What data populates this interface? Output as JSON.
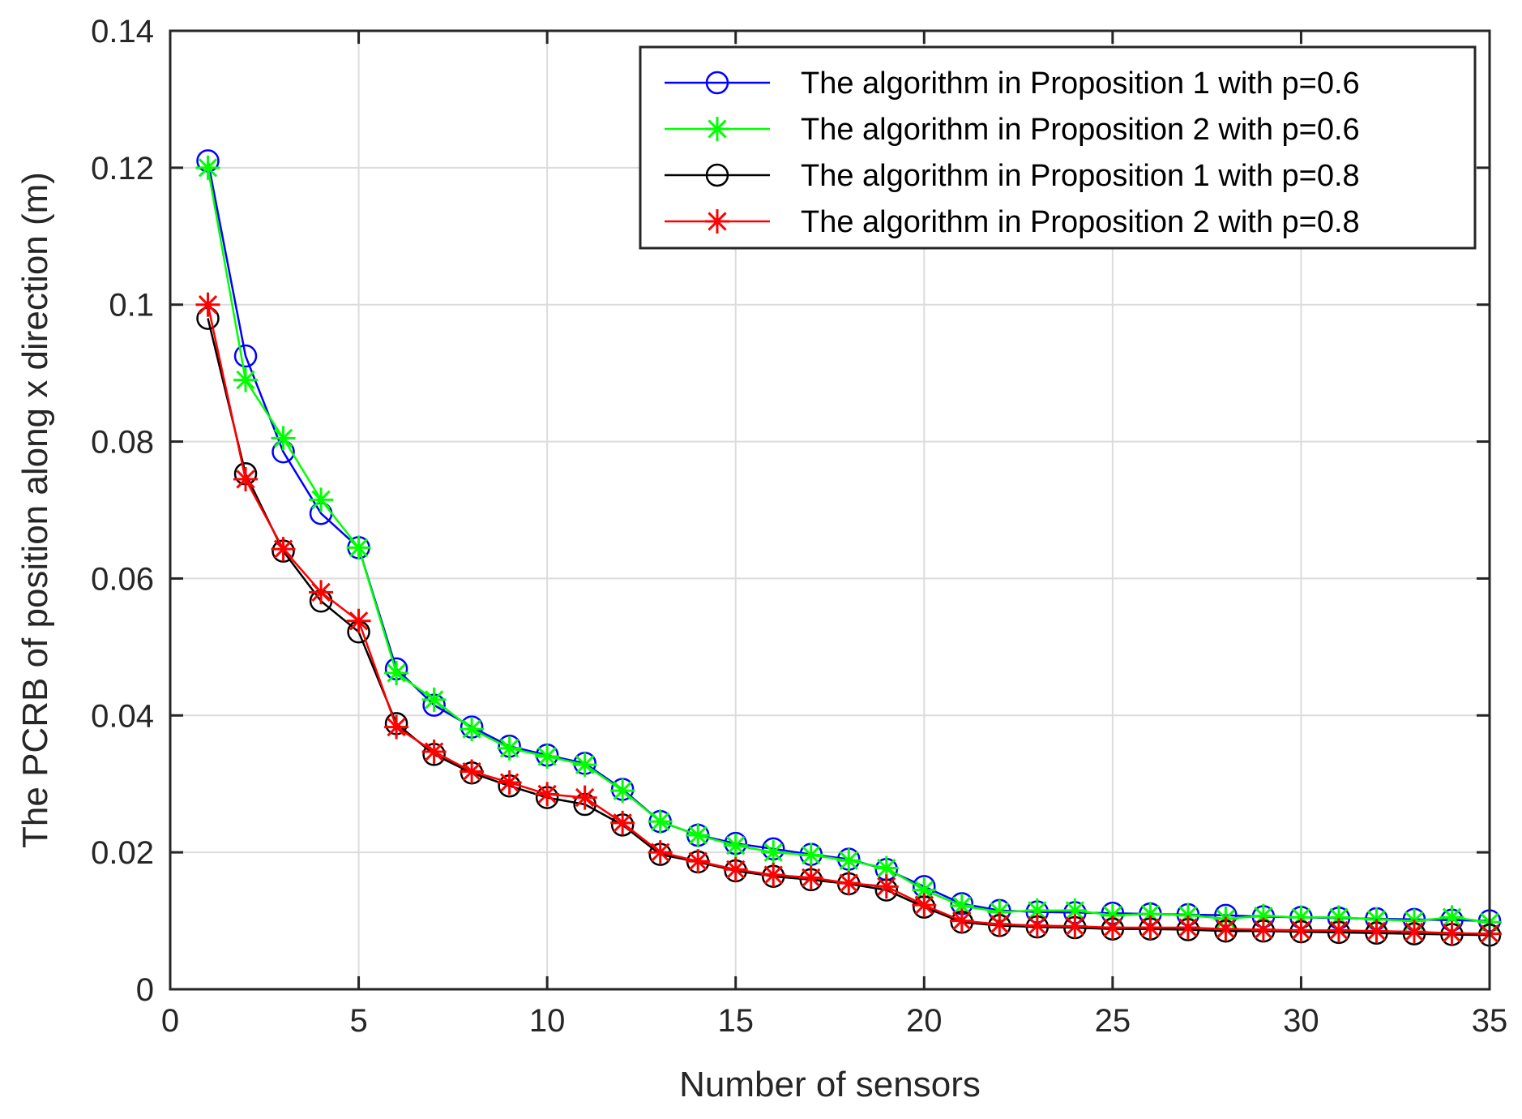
{
  "chart_data": {
    "type": "line",
    "title": "",
    "xlabel": "Number of sensors",
    "ylabel": "The PCRB of position along x direction (m)",
    "xlim": [
      0,
      35
    ],
    "ylim": [
      0,
      0.14
    ],
    "xticks": [
      0,
      5,
      10,
      15,
      20,
      25,
      30,
      35
    ],
    "xtick_labels": [
      "0",
      "5",
      "10",
      "15",
      "20",
      "25",
      "30",
      "35"
    ],
    "yticks": [
      0,
      0.02,
      0.04,
      0.06,
      0.08,
      0.1,
      0.12,
      0.14
    ],
    "ytick_labels": [
      "0",
      "0.02",
      "0.04",
      "0.06",
      "0.08",
      "0.1",
      "0.12",
      "0.14"
    ],
    "grid": true,
    "legend_position": "top-right",
    "x": [
      1,
      2,
      3,
      4,
      5,
      6,
      7,
      8,
      9,
      10,
      11,
      12,
      13,
      14,
      15,
      16,
      17,
      18,
      19,
      20,
      21,
      22,
      23,
      24,
      25,
      26,
      27,
      28,
      29,
      30,
      31,
      32,
      33,
      34,
      35
    ],
    "series": [
      {
        "name": "The algorithm in Proposition 1 with p=0.6",
        "color": "#0000ff",
        "marker": "circle",
        "values": [
          0.121,
          0.0925,
          0.0785,
          0.0695,
          0.0645,
          0.0468,
          0.0415,
          0.0383,
          0.0355,
          0.0342,
          0.033,
          0.0292,
          0.0245,
          0.0225,
          0.0213,
          0.0205,
          0.0197,
          0.019,
          0.0175,
          0.015,
          0.0125,
          0.0115,
          0.0113,
          0.0112,
          0.0111,
          0.011,
          0.0109,
          0.0108,
          0.0106,
          0.0105,
          0.0104,
          0.0103,
          0.0102,
          0.0101,
          0.01
        ]
      },
      {
        "name": "The algorithm in Proposition 2 with p=0.6",
        "color": "#00ff00",
        "marker": "asterisk",
        "values": [
          0.12,
          0.089,
          0.0805,
          0.0715,
          0.0645,
          0.0462,
          0.0423,
          0.038,
          0.0352,
          0.034,
          0.0328,
          0.029,
          0.0245,
          0.0225,
          0.021,
          0.02,
          0.0196,
          0.0188,
          0.0177,
          0.0145,
          0.0122,
          0.0113,
          0.0115,
          0.0115,
          0.0108,
          0.011,
          0.0108,
          0.0103,
          0.0107,
          0.0105,
          0.0105,
          0.0102,
          0.01,
          0.0105,
          0.0098
        ]
      },
      {
        "name": "The algorithm in Proposition 1 with p=0.8",
        "color": "#000000",
        "marker": "circle",
        "values": [
          0.098,
          0.0753,
          0.064,
          0.0567,
          0.0522,
          0.0388,
          0.0343,
          0.0316,
          0.0297,
          0.028,
          0.027,
          0.024,
          0.0197,
          0.0186,
          0.0173,
          0.0165,
          0.016,
          0.0154,
          0.0145,
          0.012,
          0.0098,
          0.0093,
          0.0091,
          0.009,
          0.0088,
          0.0088,
          0.0087,
          0.0085,
          0.0085,
          0.0084,
          0.0083,
          0.0082,
          0.0081,
          0.008,
          0.0079
        ]
      },
      {
        "name": "The algorithm in Proposition 2 with p=0.8",
        "color": "#ff0000",
        "marker": "asterisk",
        "values": [
          0.1,
          0.0745,
          0.0643,
          0.058,
          0.0538,
          0.0383,
          0.0347,
          0.0318,
          0.0302,
          0.0285,
          0.028,
          0.0243,
          0.02,
          0.0187,
          0.0175,
          0.0167,
          0.0163,
          0.0155,
          0.015,
          0.0123,
          0.01,
          0.0095,
          0.0093,
          0.0092,
          0.009,
          0.009,
          0.009,
          0.0088,
          0.0087,
          0.0086,
          0.0086,
          0.0085,
          0.0084,
          0.0082,
          0.0081
        ]
      }
    ]
  }
}
